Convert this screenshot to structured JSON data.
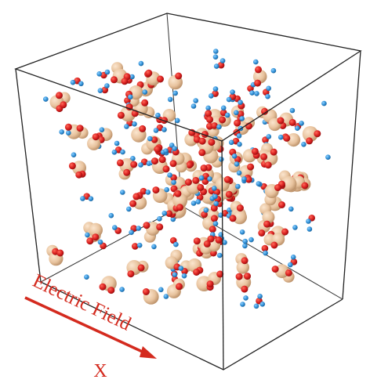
{
  "annotation": {
    "label": "Electric Field",
    "axis": "X"
  }
}
